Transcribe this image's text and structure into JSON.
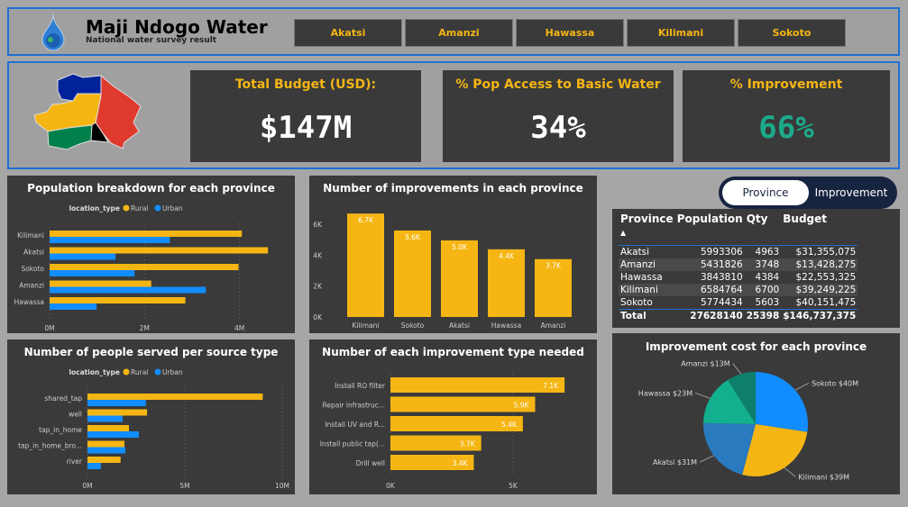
{
  "header": {
    "title": "Maji Ndogo Water",
    "subtitle": "National water survey result",
    "provinces": [
      "Akatsi",
      "Amanzi",
      "Hawassa",
      "Kilimani",
      "Sokoto"
    ]
  },
  "kpis": [
    {
      "label": "Total Budget (USD):",
      "value": "$147M",
      "color": "#ffffff"
    },
    {
      "label": "% Pop Access to Basic Water",
      "value": "34%",
      "color": "#ffffff"
    },
    {
      "label": "% Improvement",
      "value": "66%",
      "color": "#1aab8a"
    }
  ],
  "toggle": {
    "options": [
      "Province",
      "Improvement"
    ],
    "selected": "Province"
  },
  "table": {
    "columns": [
      "Province",
      "Population",
      "Qty",
      "Budget"
    ],
    "rows": [
      [
        "Akatsi",
        "5993306",
        "4963",
        "$31,355,075"
      ],
      [
        "Amanzi",
        "5431826",
        "3748",
        "$13,428,275"
      ],
      [
        "Hawassa",
        "3843810",
        "4384",
        "$22,553,325"
      ],
      [
        "Kilimani",
        "6584764",
        "6700",
        "$39,249,225"
      ],
      [
        "Sokoto",
        "5774434",
        "5603",
        "$40,151,475"
      ]
    ],
    "total": [
      "Total",
      "27628140",
      "25398",
      "$146,737,375"
    ]
  },
  "colors": {
    "rural": "#f5b614",
    "urban": "#118dff",
    "panel": "#3a3a3a",
    "accent": "#1f6fd1"
  },
  "chart_data": [
    {
      "type": "bar",
      "orientation": "horizontal",
      "title": "Population breakdown for each province",
      "legend_title": "location_type",
      "legend": "top",
      "categories": [
        "Kilimani",
        "Akatsi",
        "Sokoto",
        "Amanzi",
        "Hawassa"
      ],
      "series": [
        {
          "name": "Rural",
          "values": [
            4050000,
            4600000,
            3980000,
            2140000,
            2860000
          ]
        },
        {
          "name": "Urban",
          "values": [
            2530000,
            1390000,
            1790000,
            3290000,
            990000
          ]
        }
      ],
      "xticks": [
        "0M",
        "2M",
        "4M"
      ],
      "xlim": [
        0,
        4900000
      ]
    },
    {
      "type": "bar",
      "orientation": "horizontal",
      "title": "Number of people served per source type",
      "legend_title": "location_type",
      "legend": "top",
      "categories": [
        "shared_tap",
        "well",
        "tap_in_home",
        "tap_in_home_bro...",
        "river"
      ],
      "series": [
        {
          "name": "Rural",
          "values": [
            9000000,
            3060000,
            2130000,
            1900000,
            1700000
          ]
        },
        {
          "name": "Urban",
          "values": [
            3000000,
            1800000,
            2640000,
            1950000,
            690000
          ]
        }
      ],
      "xticks": [
        "0M",
        "5M",
        "10M"
      ],
      "xlim": [
        0,
        10000000
      ]
    },
    {
      "type": "bar",
      "orientation": "vertical",
      "title": "Number of improvements in each province",
      "categories": [
        "Kilimani",
        "Sokoto",
        "Akatsi",
        "Hawassa",
        "Amanzi"
      ],
      "values": [
        6700,
        5603,
        4963,
        4384,
        3748
      ],
      "labels": [
        "6.7K",
        "5.6K",
        "5.0K",
        "4.4K",
        "3.7K"
      ],
      "yticks": [
        "0K",
        "2K",
        "4K",
        "6K"
      ],
      "ylim": [
        0,
        7000
      ]
    },
    {
      "type": "bar",
      "orientation": "horizontal",
      "title": "Number of each improvement type needed",
      "categories": [
        "Install RO filter",
        "Repair infrastruc...",
        "Install UV and R...",
        "Install public tap(...",
        "Drill well"
      ],
      "values": [
        7100,
        5900,
        5400,
        3700,
        3400
      ],
      "labels": [
        "7.1K",
        "5.9K",
        "5.4K",
        "3.7K",
        "3.4K"
      ],
      "xticks": [
        "0K",
        "5K"
      ],
      "xlim": [
        0,
        7400
      ]
    },
    {
      "type": "pie",
      "title": "Improvement cost for each province",
      "categories": [
        "Sokoto",
        "Kilimani",
        "Akatsi",
        "Hawassa",
        "Amanzi"
      ],
      "values": [
        40,
        39,
        31,
        23,
        13
      ],
      "labels": [
        "Sokoto $40M",
        "Kilimani $39M",
        "Akatsi $31M",
        "Hawassa $23M",
        "Amanzi $13M"
      ],
      "colors": [
        "#118dff",
        "#f5b614",
        "#2a7abf",
        "#12b08f",
        "#0e7f6a"
      ]
    }
  ]
}
